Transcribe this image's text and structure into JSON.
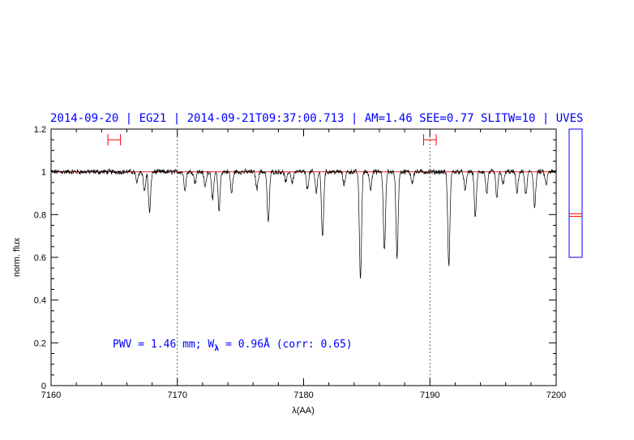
{
  "chart_data": {
    "type": "line",
    "title": "2014-09-20 | EG21 | 2014-09-21T09:37:00.713 | AM=1.46 SEE=0.77 SLITW=10 | UVES",
    "xlabel": "λ(AA)",
    "ylabel": "norm. flux",
    "xlim": [
      7160,
      7200
    ],
    "ylim": [
      0,
      1.2
    ],
    "x_ticks": [
      7160,
      7170,
      7180,
      7190,
      7200
    ],
    "y_ticks": [
      0,
      0.2,
      0.4,
      0.6,
      0.8,
      1,
      1.2
    ],
    "reference_lines_x": [
      7170,
      7190
    ],
    "continuum_level": 1.0,
    "range_markers": [
      {
        "x_start": 7164.5,
        "x_end": 7165.5,
        "y": 1.15
      },
      {
        "x_start": 7189.5,
        "x_end": 7190.5,
        "y": 1.15
      }
    ],
    "absorption_lines": [
      {
        "x": 7166.8,
        "depth": 0.05
      },
      {
        "x": 7167.4,
        "depth": 0.09
      },
      {
        "x": 7167.8,
        "depth": 0.19
      },
      {
        "x": 7170.6,
        "depth": 0.08
      },
      {
        "x": 7171.4,
        "depth": 0.05
      },
      {
        "x": 7172.2,
        "depth": 0.07
      },
      {
        "x": 7172.8,
        "depth": 0.13
      },
      {
        "x": 7173.3,
        "depth": 0.18
      },
      {
        "x": 7174.3,
        "depth": 0.1
      },
      {
        "x": 7176.3,
        "depth": 0.08
      },
      {
        "x": 7177.2,
        "depth": 0.24
      },
      {
        "x": 7178.6,
        "depth": 0.05
      },
      {
        "x": 7179.1,
        "depth": 0.05
      },
      {
        "x": 7180.3,
        "depth": 0.08
      },
      {
        "x": 7181.0,
        "depth": 0.09
      },
      {
        "x": 7181.5,
        "depth": 0.31
      },
      {
        "x": 7183.2,
        "depth": 0.06
      },
      {
        "x": 7184.5,
        "depth": 0.5
      },
      {
        "x": 7185.3,
        "depth": 0.08
      },
      {
        "x": 7186.4,
        "depth": 0.37
      },
      {
        "x": 7187.4,
        "depth": 0.4
      },
      {
        "x": 7188.6,
        "depth": 0.05
      },
      {
        "x": 7191.5,
        "depth": 0.44
      },
      {
        "x": 7192.8,
        "depth": 0.09
      },
      {
        "x": 7193.6,
        "depth": 0.21
      },
      {
        "x": 7194.5,
        "depth": 0.1
      },
      {
        "x": 7195.3,
        "depth": 0.12
      },
      {
        "x": 7195.8,
        "depth": 0.06
      },
      {
        "x": 7196.9,
        "depth": 0.1
      },
      {
        "x": 7197.6,
        "depth": 0.11
      },
      {
        "x": 7198.3,
        "depth": 0.16
      },
      {
        "x": 7199.2,
        "depth": 0.06
      }
    ],
    "grid": false,
    "annotation": {
      "prefix": "PWV = 1.46 mm; W",
      "subscript": "λ",
      "suffix": " = 0.96Å (corr: 0.65)"
    },
    "side_indicator": {
      "ylim": [
        0,
        1
      ],
      "marker_values": [
        0.32,
        0.34
      ]
    },
    "colors": {
      "spectrum": "#000000",
      "continuum": "#ff0000",
      "title": "#0000ff",
      "markers": "#ff0000",
      "indicator_box": "#0000ff"
    }
  }
}
